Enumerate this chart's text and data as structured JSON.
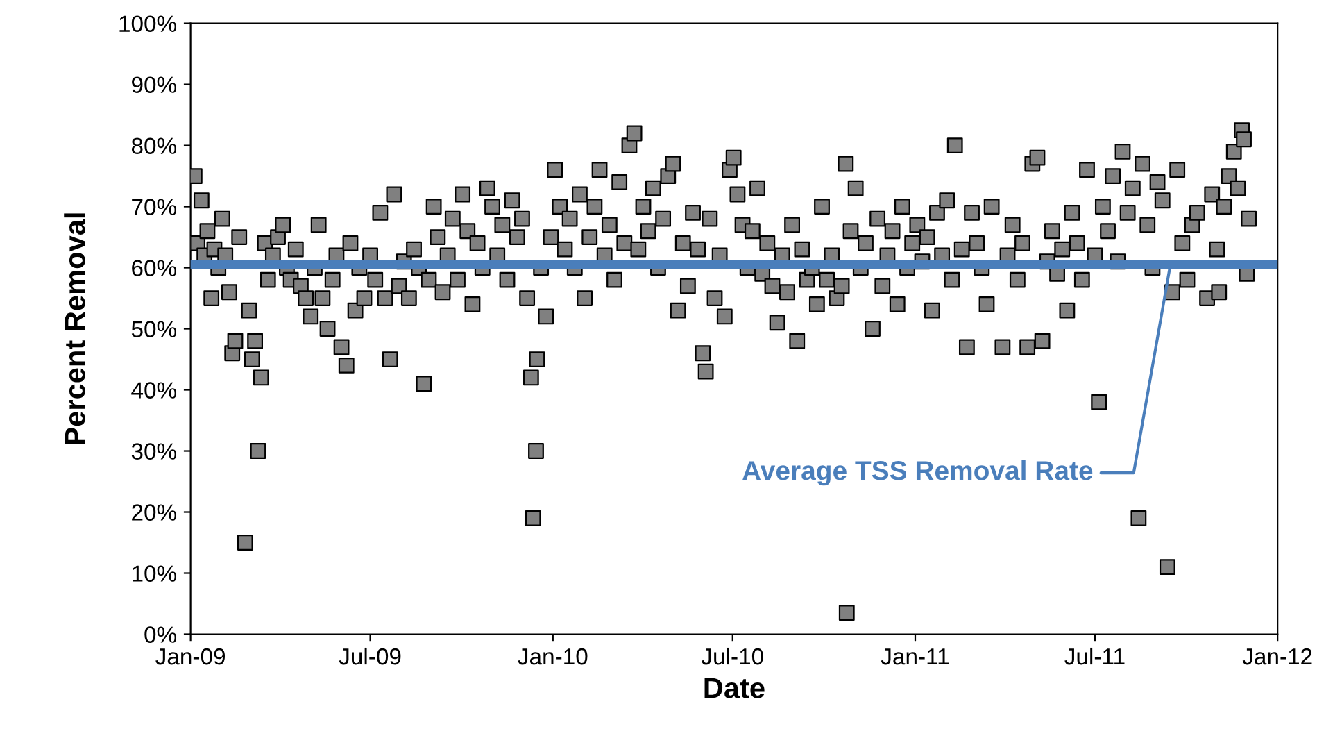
{
  "chart_data": {
    "type": "scatter",
    "xlabel": "Date",
    "ylabel": "Percent Removal",
    "marker": "square",
    "grid": false,
    "xlim": [
      "2009-01-01",
      "2012-01-01"
    ],
    "xticks": [
      {
        "value": "2009-01-01",
        "label": "Jan-09"
      },
      {
        "value": "2009-07-01",
        "label": "Jul-09"
      },
      {
        "value": "2010-01-01",
        "label": "Jan-10"
      },
      {
        "value": "2010-07-01",
        "label": "Jul-10"
      },
      {
        "value": "2011-01-01",
        "label": "Jan-11"
      },
      {
        "value": "2011-07-01",
        "label": "Jul-11"
      },
      {
        "value": "2012-01-01",
        "label": "Jan-12"
      }
    ],
    "ylim": [
      0,
      100
    ],
    "yticks": [
      {
        "value": 0,
        "label": "0%"
      },
      {
        "value": 10,
        "label": "10%"
      },
      {
        "value": 20,
        "label": "20%"
      },
      {
        "value": 30,
        "label": "30%"
      },
      {
        "value": 40,
        "label": "40%"
      },
      {
        "value": 50,
        "label": "50%"
      },
      {
        "value": 60,
        "label": "60%"
      },
      {
        "value": 70,
        "label": "70%"
      },
      {
        "value": 80,
        "label": "80%"
      },
      {
        "value": 90,
        "label": "90%"
      },
      {
        "value": 100,
        "label": "100%"
      }
    ],
    "ref_lines": [
      {
        "axis": "y",
        "value": 60.5,
        "color": "#4a7ebb"
      }
    ],
    "annotations": [
      {
        "text": "Average TSS Removal Rate",
        "x": "2011-09-15",
        "y": 60.5
      }
    ],
    "series": [
      {
        "color": "#808080",
        "x": [
          "2009-01-05",
          "2009-01-08",
          "2009-01-12",
          "2009-01-15",
          "2009-01-18",
          "2009-01-22",
          "2009-01-25",
          "2009-01-29",
          "2009-02-02",
          "2009-02-05",
          "2009-02-09",
          "2009-02-12",
          "2009-02-15",
          "2009-02-19",
          "2009-02-25",
          "2009-03-01",
          "2009-03-04",
          "2009-03-07",
          "2009-03-10",
          "2009-03-13",
          "2009-03-17",
          "2009-03-20",
          "2009-03-25",
          "2009-03-30",
          "2009-04-04",
          "2009-04-08",
          "2009-04-12",
          "2009-04-17",
          "2009-04-22",
          "2009-04-27",
          "2009-05-02",
          "2009-05-06",
          "2009-05-10",
          "2009-05-14",
          "2009-05-19",
          "2009-05-24",
          "2009-05-28",
          "2009-06-02",
          "2009-06-07",
          "2009-06-11",
          "2009-06-16",
          "2009-06-20",
          "2009-06-25",
          "2009-07-01",
          "2009-07-06",
          "2009-07-11",
          "2009-07-16",
          "2009-07-21",
          "2009-07-25",
          "2009-07-30",
          "2009-08-04",
          "2009-08-09",
          "2009-08-14",
          "2009-08-19",
          "2009-08-24",
          "2009-08-29",
          "2009-09-03",
          "2009-09-07",
          "2009-09-12",
          "2009-09-17",
          "2009-09-22",
          "2009-09-27",
          "2009-10-02",
          "2009-10-07",
          "2009-10-12",
          "2009-10-17",
          "2009-10-22",
          "2009-10-27",
          "2009-11-01",
          "2009-11-06",
          "2009-11-11",
          "2009-11-16",
          "2009-11-21",
          "2009-11-26",
          "2009-12-01",
          "2009-12-06",
          "2009-12-10",
          "2009-12-12",
          "2009-12-15",
          "2009-12-16",
          "2009-12-20",
          "2009-12-25",
          "2009-12-30",
          "2010-01-03",
          "2010-01-08",
          "2010-01-13",
          "2010-01-18",
          "2010-01-23",
          "2010-01-28",
          "2010-02-02",
          "2010-02-07",
          "2010-02-12",
          "2010-02-17",
          "2010-02-22",
          "2010-02-27",
          "2010-03-04",
          "2010-03-09",
          "2010-03-14",
          "2010-03-19",
          "2010-03-24",
          "2010-03-28",
          "2010-04-02",
          "2010-04-07",
          "2010-04-12",
          "2010-04-17",
          "2010-04-22",
          "2010-04-27",
          "2010-05-02",
          "2010-05-07",
          "2010-05-12",
          "2010-05-17",
          "2010-05-22",
          "2010-05-27",
          "2010-06-01",
          "2010-06-04",
          "2010-06-08",
          "2010-06-13",
          "2010-06-18",
          "2010-06-23",
          "2010-06-28",
          "2010-07-02",
          "2010-07-06",
          "2010-07-11",
          "2010-07-16",
          "2010-07-21",
          "2010-07-26",
          "2010-07-31",
          "2010-08-05",
          "2010-08-10",
          "2010-08-15",
          "2010-08-20",
          "2010-08-25",
          "2010-08-30",
          "2010-09-04",
          "2010-09-09",
          "2010-09-14",
          "2010-09-19",
          "2010-09-24",
          "2010-09-29",
          "2010-10-04",
          "2010-10-09",
          "2010-10-14",
          "2010-10-19",
          "2010-10-23",
          "2010-10-24",
          "2010-10-28",
          "2010-11-02",
          "2010-11-07",
          "2010-11-12",
          "2010-11-19",
          "2010-11-24",
          "2010-11-29",
          "2010-12-04",
          "2010-12-09",
          "2010-12-14",
          "2010-12-19",
          "2010-12-24",
          "2010-12-29",
          "2011-01-03",
          "2011-01-08",
          "2011-01-13",
          "2011-01-18",
          "2011-01-23",
          "2011-01-28",
          "2011-02-02",
          "2011-02-07",
          "2011-02-10",
          "2011-02-17",
          "2011-02-22",
          "2011-02-27",
          "2011-03-04",
          "2011-03-09",
          "2011-03-14",
          "2011-03-19",
          "2011-03-30",
          "2011-04-04",
          "2011-04-09",
          "2011-04-14",
          "2011-04-19",
          "2011-04-24",
          "2011-04-29",
          "2011-05-04",
          "2011-05-09",
          "2011-05-14",
          "2011-05-19",
          "2011-05-24",
          "2011-05-29",
          "2011-06-03",
          "2011-06-08",
          "2011-06-13",
          "2011-06-18",
          "2011-06-23",
          "2011-07-01",
          "2011-07-05",
          "2011-07-09",
          "2011-07-14",
          "2011-07-19",
          "2011-07-24",
          "2011-07-29",
          "2011-08-03",
          "2011-08-08",
          "2011-08-14",
          "2011-08-18",
          "2011-08-23",
          "2011-08-28",
          "2011-09-02",
          "2011-09-07",
          "2011-09-12",
          "2011-09-17",
          "2011-09-22",
          "2011-09-27",
          "2011-10-02",
          "2011-10-07",
          "2011-10-12",
          "2011-10-22",
          "2011-10-27",
          "2011-11-01",
          "2011-11-03",
          "2011-11-08",
          "2011-11-13",
          "2011-11-18",
          "2011-11-22",
          "2011-11-26",
          "2011-11-28",
          "2011-12-01",
          "2011-12-03"
        ],
        "values": [
          75,
          64,
          71,
          62,
          66,
          55,
          63,
          60,
          68,
          62,
          56,
          46,
          48,
          65,
          15,
          53,
          45,
          48,
          30,
          42,
          64,
          58,
          62,
          65,
          67,
          60,
          58,
          63,
          57,
          55,
          52,
          60,
          67,
          55,
          50,
          58,
          62,
          47,
          44,
          64,
          53,
          60,
          55,
          62,
          58,
          69,
          55,
          45,
          72,
          57,
          61,
          55,
          63,
          60,
          41,
          58,
          70,
          65,
          56,
          62,
          68,
          58,
          72,
          66,
          54,
          64,
          60,
          73,
          70,
          62,
          67,
          58,
          71,
          65,
          68,
          55,
          42,
          19,
          30,
          45,
          60,
          52,
          65,
          76,
          70,
          63,
          68,
          60,
          72,
          55,
          65,
          70,
          76,
          62,
          67,
          58,
          74,
          64,
          80,
          82,
          63,
          70,
          66,
          73,
          60,
          68,
          75,
          77,
          53,
          64,
          57,
          69,
          63,
          46,
          43,
          68,
          55,
          62,
          52,
          76,
          78,
          72,
          67,
          60,
          66,
          73,
          59,
          64,
          57,
          51,
          62,
          56,
          67,
          48,
          63,
          58,
          60,
          54,
          70,
          58,
          62,
          55,
          57,
          77,
          3.5,
          66,
          73,
          60,
          64,
          50,
          68,
          57,
          62,
          66,
          54,
          70,
          60,
          64,
          67,
          61,
          65,
          53,
          69,
          62,
          71,
          58,
          80,
          63,
          47,
          69,
          64,
          60,
          54,
          70,
          47,
          62,
          67,
          58,
          64,
          47,
          77,
          78,
          48,
          61,
          66,
          59,
          63,
          53,
          69,
          64,
          58,
          76,
          62,
          38,
          70,
          66,
          75,
          61,
          79,
          69,
          73,
          19,
          77,
          67,
          60,
          74,
          71,
          11,
          56,
          76,
          64,
          58,
          67,
          69,
          55,
          72,
          63,
          56,
          70,
          75,
          79,
          73,
          82.5,
          81,
          59,
          68
        ]
      }
    ]
  }
}
